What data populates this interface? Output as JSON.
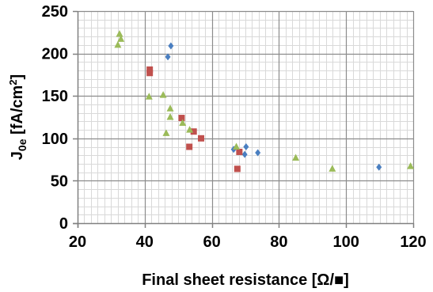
{
  "chart_data": {
    "type": "scatter",
    "xlabel": "Final sheet resistance [Ω/■]",
    "ylabel": {
      "main": "J",
      "subscript": "0e",
      "unit_prefix": " [fA/cm",
      "superscript": "2",
      "unit_suffix": "]"
    },
    "xlim": [
      20,
      120
    ],
    "ylim": [
      0,
      250
    ],
    "x_major_ticks": [
      20,
      40,
      60,
      80,
      100,
      120
    ],
    "y_major_ticks": [
      0,
      50,
      100,
      150,
      200,
      250
    ],
    "x_tick_labels": [
      "20",
      "40",
      "60",
      "80",
      "100",
      "120"
    ],
    "y_tick_labels": [
      "0",
      "50",
      "100",
      "150",
      "200",
      "250"
    ],
    "x_minor_step": 2,
    "y_minor_step": 10,
    "grid": "major and minor",
    "legend": "none",
    "colors": {
      "series1": "#4a7fc1",
      "series2": "#c0504d",
      "series3": "#9bbb59",
      "major_grid": "#8c8c8c",
      "minor_grid": "#d9d9d9",
      "axis": "#808080"
    },
    "series": [
      {
        "marker": "diamond",
        "color": "#4a7fc1",
        "points": [
          [
            47.8,
            209
          ],
          [
            46.9,
            196
          ],
          [
            66.5,
            87
          ],
          [
            69.8,
            81
          ],
          [
            70.2,
            90
          ],
          [
            73.7,
            83
          ],
          [
            109.8,
            66
          ]
        ]
      },
      {
        "marker": "square",
        "color": "#c0504d",
        "points": [
          [
            41.5,
            181
          ],
          [
            41.5,
            177
          ],
          [
            51.0,
            124
          ],
          [
            54.6,
            108
          ],
          [
            56.8,
            100
          ],
          [
            53.3,
            90
          ],
          [
            68.2,
            84
          ],
          [
            67.6,
            64
          ]
        ]
      },
      {
        "marker": "triangle",
        "color": "#9bbb59",
        "points": [
          [
            32.5,
            223
          ],
          [
            32.9,
            217
          ],
          [
            32.0,
            210
          ],
          [
            41.3,
            149
          ],
          [
            45.5,
            151
          ],
          [
            47.6,
            135
          ],
          [
            47.6,
            125
          ],
          [
            51.3,
            118
          ],
          [
            53.4,
            110
          ],
          [
            46.4,
            106
          ],
          [
            67.3,
            90
          ],
          [
            85.0,
            77
          ],
          [
            95.9,
            64
          ],
          [
            119.2,
            67
          ]
        ]
      }
    ]
  }
}
